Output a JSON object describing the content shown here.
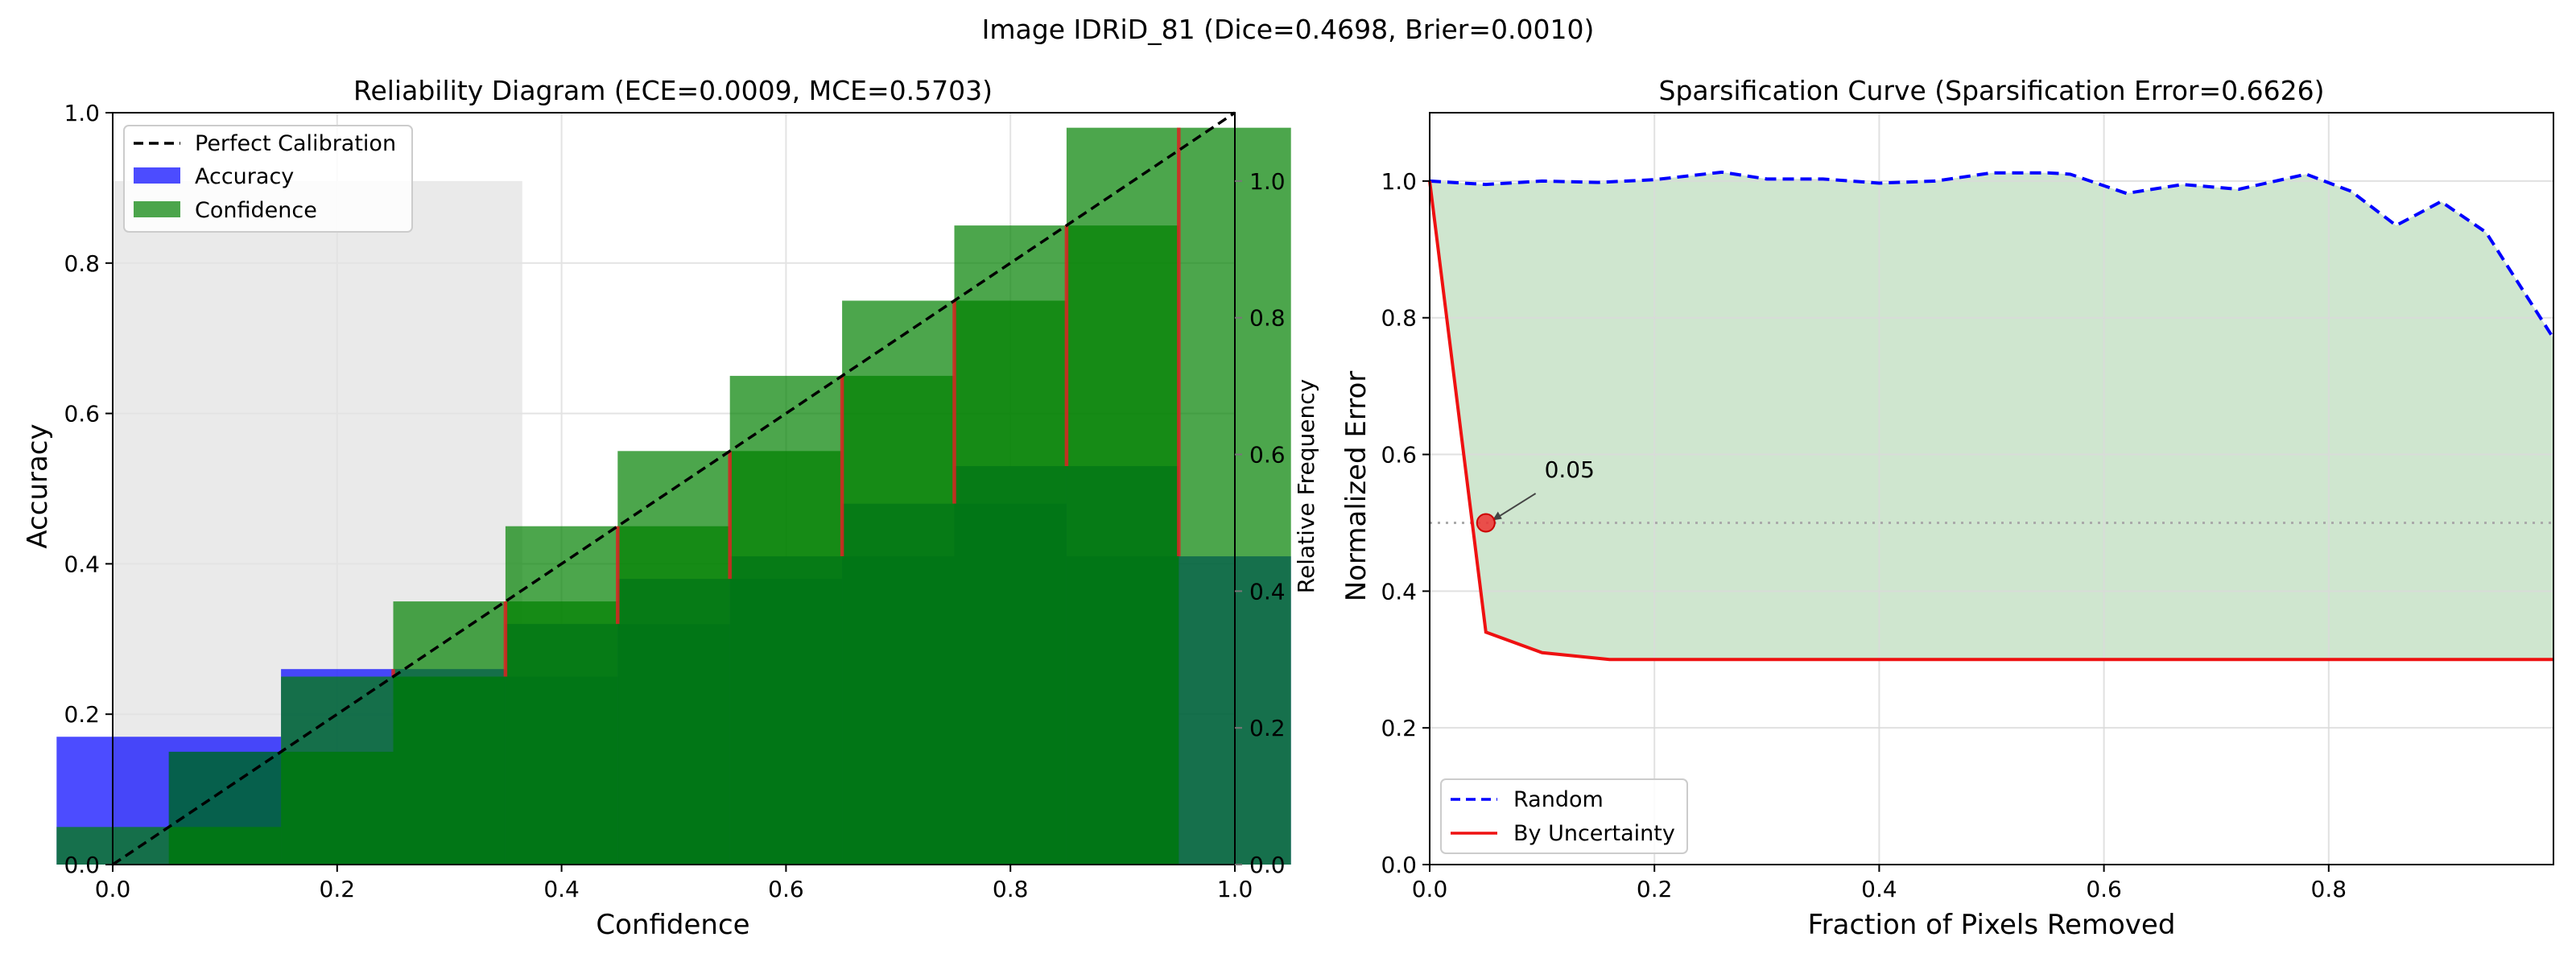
{
  "figure": {
    "suptitle": "Image IDRiD_81 (Dice=0.4698, Brier=0.0010)"
  },
  "chart_data": [
    {
      "type": "bar",
      "title": "Reliability Diagram (ECE=0.0009, MCE=0.5703)",
      "xlabel": "Confidence",
      "ylabel": "Accuracy",
      "y2label": "Relative Frequency",
      "xlim": [
        0,
        1
      ],
      "ylim": [
        0,
        1
      ],
      "y2lim": [
        0,
        1.1
      ],
      "xticks": [
        "0.0",
        "0.2",
        "0.4",
        "0.6",
        "0.8",
        "1.0"
      ],
      "yticks": [
        "0.0",
        "0.2",
        "0.4",
        "0.6",
        "0.8",
        "1.0"
      ],
      "y2ticks": [
        "0.0",
        "0.2",
        "0.4",
        "0.6",
        "0.8",
        "1.0"
      ],
      "grid": true,
      "legend": {
        "position": "top-left",
        "entries": [
          "Perfect Calibration",
          "Accuracy",
          "Confidence"
        ]
      },
      "colors": {
        "accuracy": "#0000ff",
        "confidence": "#008000",
        "gap": "#dd2222",
        "perfect": "#000000",
        "frequency": "#d9d9d9"
      },
      "bins": [
        {
          "center": 0.05,
          "accuracy": 0.17,
          "confidence": 0.05
        },
        {
          "center": 0.15,
          "accuracy": 0.15,
          "confidence": 0.15
        },
        {
          "center": 0.25,
          "accuracy": 0.26,
          "confidence": 0.25
        },
        {
          "center": 0.35,
          "accuracy": 0.25,
          "confidence": 0.35
        },
        {
          "center": 0.45,
          "accuracy": 0.32,
          "confidence": 0.45
        },
        {
          "center": 0.55,
          "accuracy": 0.38,
          "confidence": 0.55
        },
        {
          "center": 0.65,
          "accuracy": 0.41,
          "confidence": 0.65
        },
        {
          "center": 0.75,
          "accuracy": 0.48,
          "confidence": 0.75
        },
        {
          "center": 0.85,
          "accuracy": 0.53,
          "confidence": 0.85
        },
        {
          "center": 0.95,
          "accuracy": 0.41,
          "confidence": 0.98
        }
      ],
      "frequency_bar": {
        "x_start": 0.0,
        "x_end": 0.365,
        "value": 1.0
      }
    },
    {
      "type": "line",
      "title": "Sparsification Curve (Sparsification Error=0.6626)",
      "xlabel": "Fraction of Pixels Removed",
      "ylabel": "Normalized Error",
      "xlim": [
        0,
        1.0
      ],
      "ylim": [
        0,
        1.1
      ],
      "xticks": [
        "0.0",
        "0.2",
        "0.4",
        "0.6",
        "0.8"
      ],
      "yticks": [
        "0.0",
        "0.2",
        "0.4",
        "0.6",
        "0.8",
        "1.0"
      ],
      "grid": true,
      "legend": {
        "position": "bottom-left",
        "entries": [
          "Random",
          "By Uncertainty"
        ]
      },
      "series": [
        {
          "name": "Random",
          "style": "dashed",
          "color": "#0000ff",
          "x": [
            0.0,
            0.05,
            0.1,
            0.15,
            0.2,
            0.26,
            0.3,
            0.35,
            0.4,
            0.45,
            0.5,
            0.55,
            0.57,
            0.62,
            0.67,
            0.72,
            0.78,
            0.82,
            0.86,
            0.9,
            0.94,
            1.0
          ],
          "y": [
            1.0,
            0.995,
            1.0,
            0.998,
            1.002,
            1.013,
            1.003,
            1.003,
            0.997,
            1.0,
            1.012,
            1.012,
            1.01,
            0.982,
            0.995,
            0.988,
            1.01,
            0.985,
            0.935,
            0.97,
            0.925,
            0.77
          ]
        },
        {
          "name": "By Uncertainty",
          "style": "solid",
          "color": "#ee1111",
          "x": [
            0.0,
            0.05,
            0.1,
            0.16,
            0.2,
            0.3,
            0.4,
            0.5,
            0.6,
            0.7,
            0.8,
            0.9,
            1.0
          ],
          "y": [
            1.0,
            0.34,
            0.31,
            0.3,
            0.3,
            0.3,
            0.3,
            0.3,
            0.3,
            0.3,
            0.3,
            0.3,
            0.3
          ]
        }
      ],
      "fill_between": {
        "color": "#cfe6cf",
        "between": [
          "Random",
          "By Uncertainty"
        ]
      },
      "reference_line": {
        "y": 0.5,
        "style": "dotted",
        "color": "#aaaaaa"
      },
      "marker": {
        "x": 0.05,
        "y": 0.5,
        "color": "#ee3333"
      },
      "annotation": {
        "text": "0.05",
        "x": 0.1,
        "y": 0.55
      }
    }
  ]
}
